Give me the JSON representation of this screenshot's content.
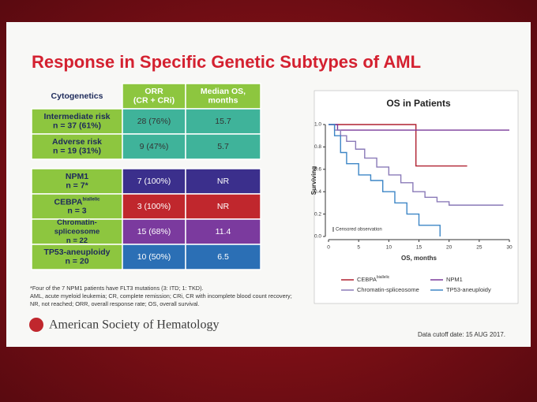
{
  "title": "Response in Specific Genetic Subtypes of AML",
  "table1": {
    "header": [
      [
        "Cytogenetics"
      ],
      [
        "ORR",
        "(CR + CRi)"
      ],
      [
        "Median OS,",
        "months"
      ]
    ],
    "rows": [
      {
        "label": [
          "Intermediate risk",
          "n = 37 (61%)"
        ],
        "cells": [
          "28 (76%)",
          "15.7"
        ],
        "color": "#3fb39a"
      },
      {
        "label": [
          "Adverse risk",
          "n = 19 (31%)"
        ],
        "cells": [
          "9 (47%)",
          "5.7"
        ],
        "color": "#3fb39a"
      }
    ]
  },
  "table2": {
    "rows": [
      {
        "label": [
          "NPM1",
          "n = 7*"
        ],
        "cells": [
          "7 (100%)",
          "NR"
        ],
        "color": "#3b2f8c"
      },
      {
        "label": [
          "CEBPA",
          "n = 3"
        ],
        "sup": "biallelic",
        "cells": [
          "3 (100%)",
          "NR"
        ],
        "color": "#c0272d"
      },
      {
        "label": [
          "Chromatin-",
          "spliceosome",
          "n = 22"
        ],
        "cells": [
          "15 (68%)",
          "11.4"
        ],
        "color": "#7b3a9e"
      },
      {
        "label": [
          "TP53-aneuploidy",
          "n = 20"
        ],
        "cells": [
          "10 (50%)",
          "6.5"
        ],
        "color": "#2b6fb5"
      }
    ]
  },
  "footnote": [
    "*Four of the 7 NPM1 patients have FLT3 mutations (3: ITD; 1: TKD).",
    "AML, acute myeloid leukemia; CR, complete remission; CRi, CR with incomplete blood count recovery;",
    "NR, not reached; ORR, overall response rate; OS, overall survival."
  ],
  "logo": "American Society of Hematology",
  "cutoff": "Data cutoff date: 15 AUG 2017.",
  "chart_data": {
    "type": "line",
    "title": "OS in Patients",
    "xlabel": "OS, months",
    "ylabel": "Surviving",
    "annotation": "Censored observation",
    "xlim": [
      0,
      30
    ],
    "ylim": [
      0,
      1
    ],
    "xticks": [
      0,
      5,
      10,
      15,
      20,
      25,
      30
    ],
    "yticks": [
      {
        "value": 0,
        "label": "0.0"
      },
      {
        "value": 0.2,
        "label": "0.2"
      },
      {
        "value": 0.4,
        "label": "0.4"
      },
      {
        "value": 0.6,
        "label": "0.6"
      },
      {
        "value": 0.8,
        "label": "0.8"
      },
      {
        "value": 1,
        "label": "1.0"
      }
    ],
    "series": [
      {
        "name": "CEBPA",
        "name_sup": "biallelic",
        "color": "#b02030",
        "x": [
          0,
          14.5,
          14.5,
          23
        ],
        "y": [
          1,
          1,
          0.63,
          0.63
        ]
      },
      {
        "name": "NPM1",
        "color": "#7a3a9a",
        "x": [
          0,
          1.5,
          1.5,
          30
        ],
        "y": [
          1,
          1,
          0.95,
          0.95
        ]
      },
      {
        "name": "Chromatin-spliceosome",
        "color": "#8a7ab8",
        "x": [
          0,
          1,
          1,
          2,
          2,
          3,
          3,
          4.5,
          4.5,
          6,
          6,
          8,
          8,
          10,
          10,
          12,
          12,
          14,
          14,
          16,
          16,
          18,
          18,
          20,
          20,
          29
        ],
        "y": [
          1,
          1,
          0.95,
          0.95,
          0.9,
          0.9,
          0.85,
          0.85,
          0.78,
          0.78,
          0.7,
          0.7,
          0.62,
          0.62,
          0.55,
          0.55,
          0.48,
          0.48,
          0.4,
          0.4,
          0.35,
          0.35,
          0.31,
          0.31,
          0.28,
          0.28
        ]
      },
      {
        "name": "TP53-aneuploidy",
        "color": "#3d86c6",
        "x": [
          0,
          1,
          1,
          2,
          2,
          3,
          3,
          5,
          5,
          7,
          7,
          9,
          9,
          11,
          11,
          13,
          13,
          15,
          15,
          18.5,
          18.5
        ],
        "y": [
          1,
          1,
          0.9,
          0.9,
          0.75,
          0.75,
          0.65,
          0.65,
          0.55,
          0.55,
          0.5,
          0.5,
          0.4,
          0.4,
          0.3,
          0.3,
          0.2,
          0.2,
          0.1,
          0.1,
          0
        ]
      }
    ]
  }
}
